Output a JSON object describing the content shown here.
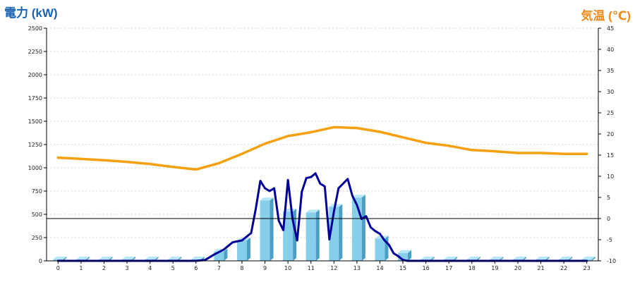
{
  "chart_data": {
    "type": "bar+line",
    "title": "",
    "ylabel_left": "電力 (kW)",
    "ylabel_right": "気温 (℃)",
    "xlabel": "",
    "categories": [
      "0",
      "1",
      "2",
      "3",
      "4",
      "5",
      "6",
      "7",
      "8",
      "9",
      "10",
      "11",
      "12",
      "13",
      "14",
      "15",
      "16",
      "17",
      "18",
      "19",
      "20",
      "21",
      "22",
      "23"
    ],
    "ylim_left": [
      0,
      2500
    ],
    "yticks_left": [
      0,
      250,
      500,
      750,
      1000,
      1250,
      1500,
      1750,
      2000,
      2250,
      2500
    ],
    "ylim_right": [
      -10,
      45
    ],
    "yticks_right": [
      -10,
      -5,
      0,
      5,
      10,
      15,
      20,
      25,
      30,
      35,
      40,
      45
    ],
    "grid": true,
    "series": [
      {
        "name": "",
        "kind": "bar",
        "axis": "left",
        "color": "#87ceeb",
        "values": [
          15,
          15,
          15,
          15,
          15,
          15,
          15,
          100,
          220,
          650,
          530,
          520,
          580,
          680,
          240,
          85,
          15,
          15,
          15,
          15,
          15,
          15,
          15,
          15
        ]
      },
      {
        "name": "",
        "kind": "line",
        "axis": "left",
        "color": "#000099",
        "x": [
          0,
          1,
          2,
          3,
          4,
          5,
          6,
          6.4,
          6.8,
          7.2,
          7.6,
          8.0,
          8.4,
          8.6,
          8.8,
          9.0,
          9.2,
          9.4,
          9.6,
          9.8,
          10.0,
          10.2,
          10.4,
          10.6,
          10.8,
          11.0,
          11.2,
          11.4,
          11.6,
          11.8,
          12.0,
          12.2,
          12.4,
          12.6,
          12.8,
          13.0,
          13.2,
          13.4,
          13.6,
          13.8,
          14.0,
          14.2,
          14.4,
          14.6,
          14.8,
          15.0,
          15.2,
          15.4,
          15.6,
          16,
          17,
          18,
          19,
          20,
          21,
          22,
          23
        ],
        "values": [
          0,
          0,
          0,
          0,
          0,
          0,
          0,
          10,
          70,
          120,
          200,
          220,
          300,
          560,
          860,
          780,
          750,
          780,
          430,
          330,
          870,
          450,
          220,
          740,
          890,
          900,
          940,
          830,
          800,
          230,
          530,
          780,
          830,
          880,
          700,
          600,
          450,
          480,
          360,
          320,
          290,
          220,
          170,
          80,
          50,
          10,
          0,
          0,
          0,
          0,
          0,
          0,
          0,
          0,
          0,
          0,
          0
        ]
      },
      {
        "name": "",
        "kind": "line",
        "axis": "right",
        "color": "#f5a00f",
        "x": [
          0,
          1,
          2,
          3,
          4,
          5,
          6,
          7,
          8,
          9,
          10,
          11,
          12,
          13,
          14,
          15,
          16,
          17,
          18,
          19,
          20,
          21,
          22,
          23
        ],
        "values": [
          14.4,
          14.1,
          13.8,
          13.4,
          12.9,
          12.2,
          11.6,
          13.1,
          15.3,
          17.7,
          19.5,
          20.4,
          21.6,
          21.4,
          20.5,
          19.2,
          17.9,
          17.2,
          16.2,
          15.9,
          15.5,
          15.5,
          15.3,
          15.3
        ]
      }
    ]
  }
}
